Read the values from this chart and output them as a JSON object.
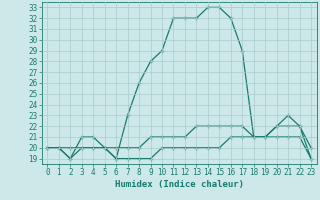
{
  "xlabel": "Humidex (Indice chaleur)",
  "background_color": "#cce8e8",
  "line_color": "#1a7a6e",
  "grid_color": "#aacccc",
  "x_values": [
    0,
    1,
    2,
    3,
    4,
    5,
    6,
    7,
    8,
    9,
    10,
    11,
    12,
    13,
    14,
    15,
    16,
    17,
    18,
    19,
    20,
    21,
    22,
    23
  ],
  "series": {
    "main": [
      20,
      20,
      19,
      21,
      21,
      20,
      19,
      23,
      26,
      28,
      29,
      32,
      32,
      32,
      33,
      33,
      32,
      29,
      21,
      21,
      22,
      23,
      22,
      19
    ],
    "min": [
      20,
      20,
      19,
      20,
      20,
      20,
      19,
      19,
      19,
      19,
      20,
      20,
      20,
      20,
      20,
      20,
      21,
      21,
      21,
      21,
      21,
      21,
      21,
      19
    ],
    "max": [
      20,
      20,
      20,
      20,
      20,
      20,
      20,
      20,
      20,
      21,
      21,
      21,
      21,
      22,
      22,
      22,
      22,
      22,
      21,
      21,
      22,
      22,
      22,
      20
    ]
  },
  "ylim": [
    18.5,
    33.5
  ],
  "xlim": [
    -0.5,
    23.5
  ],
  "yticks": [
    19,
    20,
    21,
    22,
    23,
    24,
    25,
    26,
    27,
    28,
    29,
    30,
    31,
    32,
    33
  ],
  "xticks": [
    0,
    1,
    2,
    3,
    4,
    5,
    6,
    7,
    8,
    9,
    10,
    11,
    12,
    13,
    14,
    15,
    16,
    17,
    18,
    19,
    20,
    21,
    22,
    23
  ],
  "fontsize": 5.5,
  "xlabel_fontsize": 6.5,
  "linewidth": 0.9,
  "marker": "+",
  "markersize": 3,
  "markeredgewidth": 0.8
}
